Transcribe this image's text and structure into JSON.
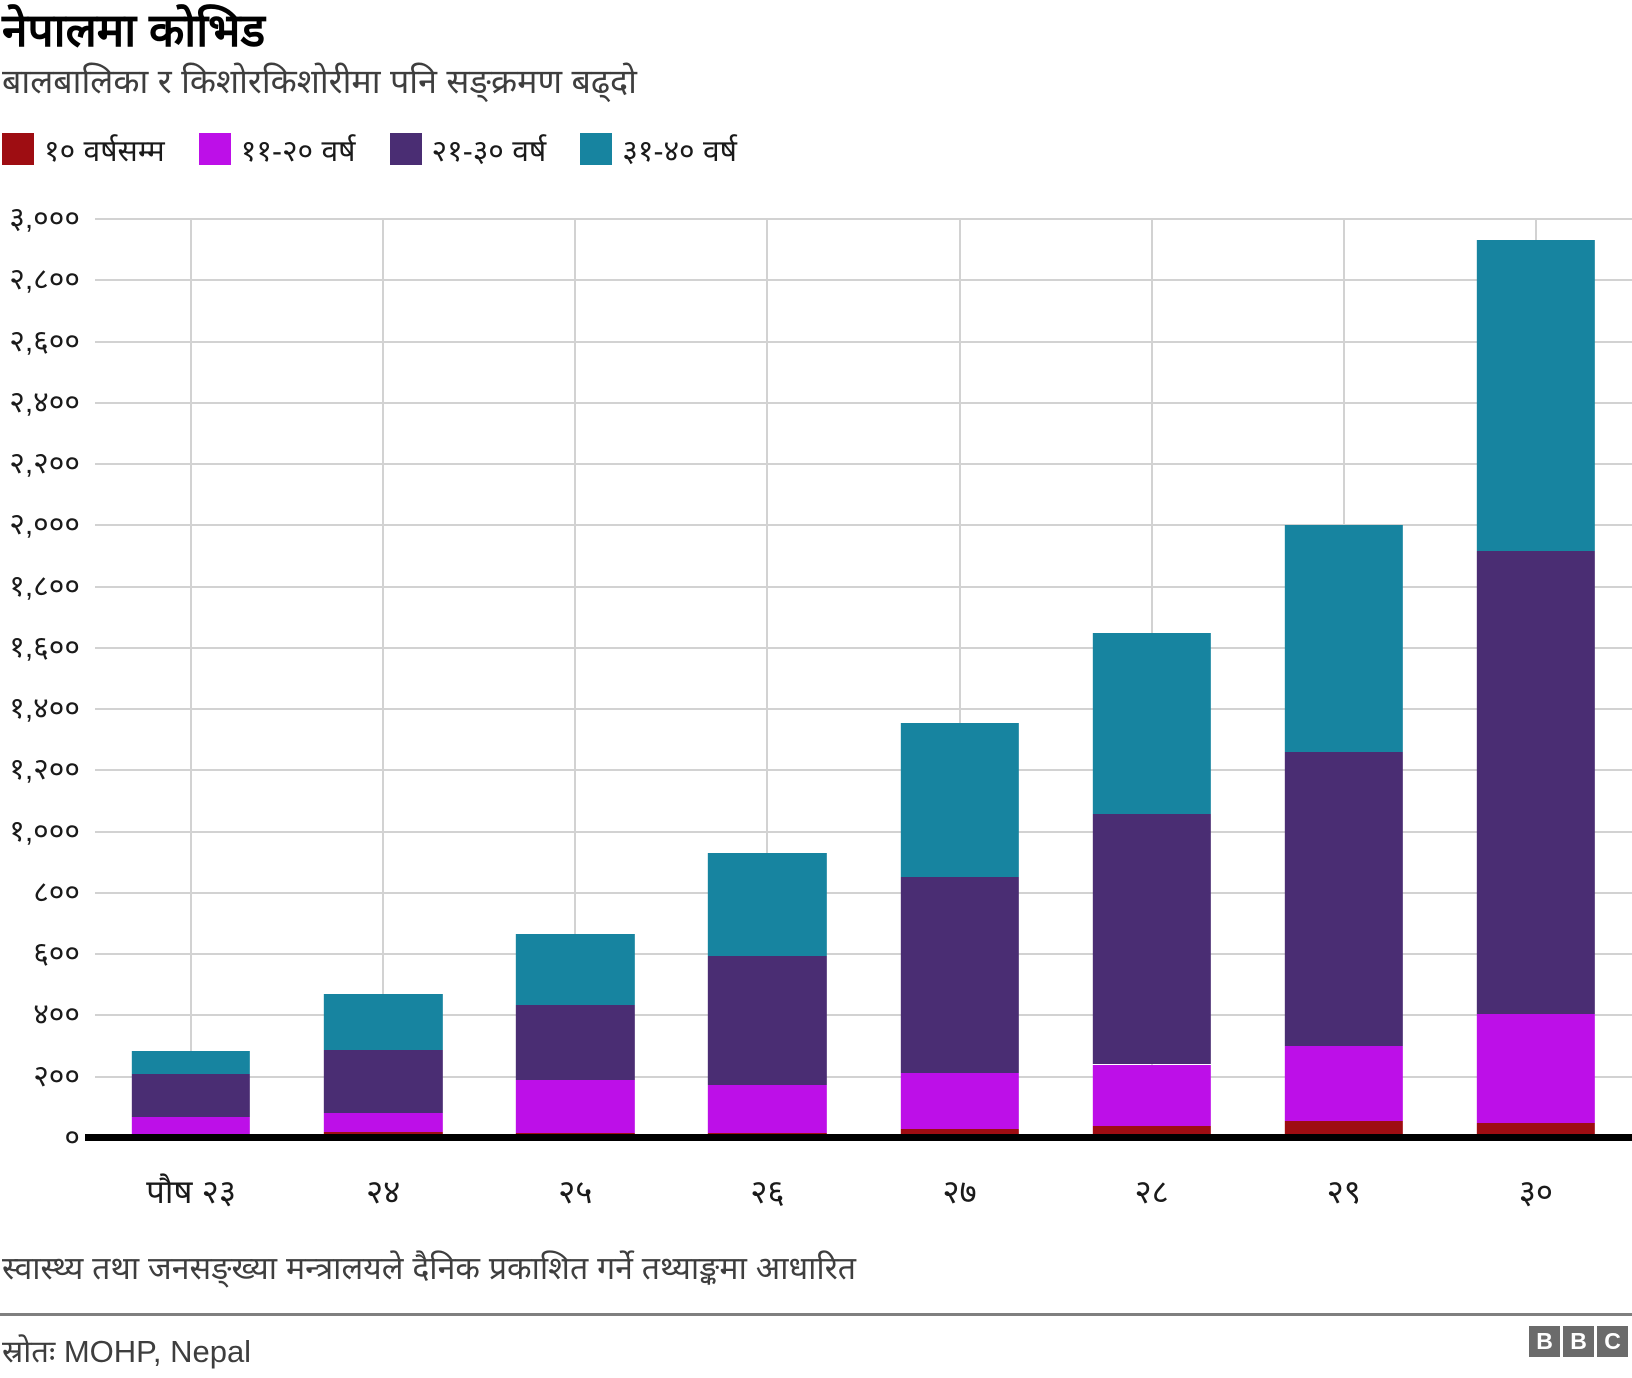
{
  "header": {
    "title": "नेपालमा कोभिड",
    "subtitle": "बालबालिका र किशोरकिशोरीमा पनि सङ्क्रमण बढ्दो"
  },
  "colors": {
    "age_0_10": "#9e0d12",
    "age_11_20": "#bd0fe8",
    "age_21_30": "#4a2d73",
    "age_31_40": "#1784a0",
    "gridline": "#d2d2d2",
    "axis_line": "#000000",
    "divider": "#7f7f7f",
    "logo_gray": "#6b6b6b"
  },
  "chart_data": {
    "type": "bar",
    "stacked": true,
    "grid": true,
    "legend_position": "top",
    "categories": [
      "पौष २३",
      "२४",
      "२५",
      "२६",
      "२७",
      "२८",
      "२९",
      "३०"
    ],
    "series": [
      {
        "name": "१० वर्षसम्म",
        "color": "#9e0d12",
        "values": [
          3,
          20,
          15,
          18,
          30,
          39,
          55,
          50
        ]
      },
      {
        "name": "११-२० वर्ष",
        "color": "#bd0fe8",
        "values": [
          67,
          63,
          175,
          155,
          181,
          201,
          245,
          355
        ]
      },
      {
        "name": "२१-३० वर्ष",
        "color": "#4a2d73",
        "values": [
          140,
          205,
          245,
          422,
          641,
          817,
          960,
          1510
        ]
      },
      {
        "name": "३१-४० वर्ष",
        "color": "#1784a0",
        "values": [
          75,
          182,
          230,
          335,
          503,
          593,
          740,
          1015
        ]
      }
    ],
    "totals": [
      285,
      470,
      665,
      930,
      1355,
      1650,
      2000,
      2930
    ],
    "ylim": [
      0,
      3000
    ],
    "y_ticks": [
      {
        "value": 0,
        "label": "०"
      },
      {
        "value": 200,
        "label": "२००"
      },
      {
        "value": 400,
        "label": "४००"
      },
      {
        "value": 600,
        "label": "६००"
      },
      {
        "value": 800,
        "label": "८००"
      },
      {
        "value": 1000,
        "label": "१,०००"
      },
      {
        "value": 1200,
        "label": "१,२००"
      },
      {
        "value": 1400,
        "label": "१,४००"
      },
      {
        "value": 1600,
        "label": "१,६००"
      },
      {
        "value": 1800,
        "label": "१,८००"
      },
      {
        "value": 2000,
        "label": "२,०००"
      },
      {
        "value": 2200,
        "label": "२,२००"
      },
      {
        "value": 2400,
        "label": "२,४००"
      },
      {
        "value": 2600,
        "label": "२,६००"
      },
      {
        "value": 2800,
        "label": "२,८००"
      },
      {
        "value": 3000,
        "label": "३,०००"
      }
    ],
    "xlabel": "",
    "ylabel": ""
  },
  "footer": {
    "note": "स्वास्थ्य तथा जनसङ्ख्या मन्त्रालयले दैनिक प्रकाशित गर्ने तथ्याङ्कमा आधारित",
    "source": "स्रोतः MOHP, Nepal",
    "logo_blocks": [
      "B",
      "B",
      "C"
    ]
  }
}
